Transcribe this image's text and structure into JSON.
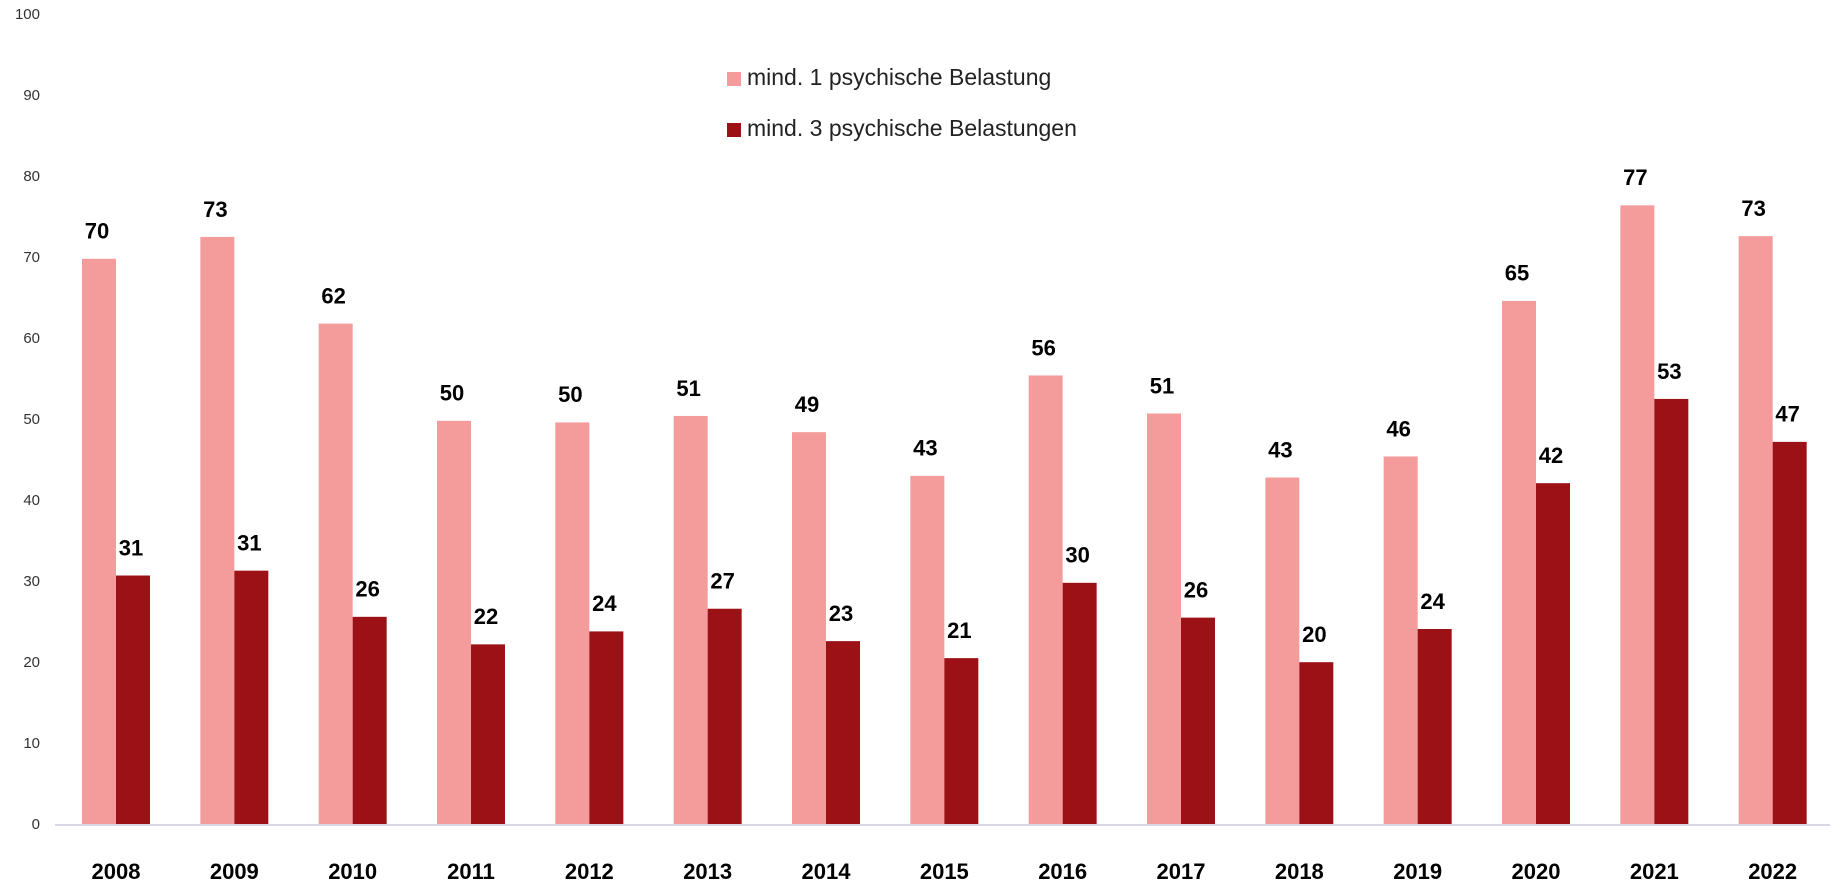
{
  "chart_data": {
    "type": "bar",
    "categories": [
      "2008",
      "2009",
      "2010",
      "2011",
      "2012",
      "2013",
      "2014",
      "2015",
      "2016",
      "2017",
      "2018",
      "2019",
      "2020",
      "2021",
      "2022"
    ],
    "series": [
      {
        "name": "mind. 1 psychische Belastung",
        "color": "#f49b9b",
        "values": [
          69.9,
          72.6,
          61.9,
          49.9,
          49.7,
          50.5,
          48.5,
          43.1,
          55.5,
          50.8,
          42.9,
          45.5,
          64.7,
          76.5,
          72.7
        ],
        "value_labels": [
          "70",
          "73",
          "62",
          "50",
          "50",
          "51",
          "49",
          "43",
          "56",
          "51",
          "43",
          "46",
          "65",
          "77",
          "73"
        ]
      },
      {
        "name": "mind. 3 psychische Belastungen",
        "color": "#9b1116",
        "values": [
          30.8,
          31.4,
          25.7,
          22.3,
          23.9,
          26.7,
          22.7,
          20.6,
          29.9,
          25.6,
          20.1,
          24.2,
          42.2,
          52.6,
          47.3
        ],
        "value_labels": [
          "31",
          "31",
          "26",
          "22",
          "24",
          "27",
          "23",
          "21",
          "30",
          "26",
          "20",
          "24",
          "42",
          "53",
          "47"
        ]
      }
    ],
    "ylim": [
      0,
      100
    ],
    "yticks": [
      0,
      10,
      20,
      30,
      40,
      50,
      60,
      70,
      80,
      90,
      100
    ],
    "grid": false,
    "legend": "top"
  }
}
